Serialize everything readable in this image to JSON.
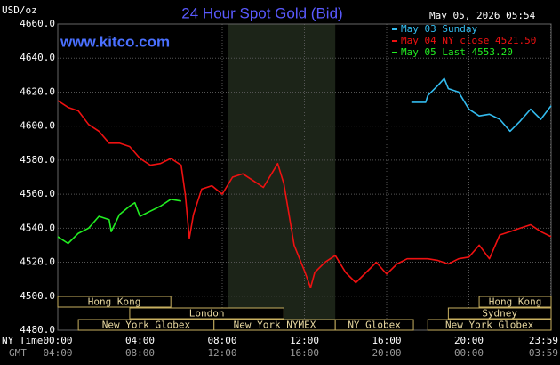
{
  "chart_data": {
    "type": "line",
    "title": "24 Hour Spot Gold (Bid)",
    "y_unit": "USD/oz",
    "timestamp": "May 05, 2026 05:54",
    "source": "www.kitco.com",
    "x_axis_labels": [
      "NY Time",
      "GMT"
    ],
    "xlim": [
      0,
      24
    ],
    "ylim": [
      4480,
      4660
    ],
    "grid": true,
    "xticks": [
      {
        "value": 0,
        "label": "00:00"
      },
      {
        "value": 4,
        "label": "04:00"
      },
      {
        "value": 8,
        "label": "08:00"
      },
      {
        "value": 12,
        "label": "12:00"
      },
      {
        "value": 16,
        "label": "16:00"
      },
      {
        "value": 20,
        "label": "20:00"
      },
      {
        "value": 23.98,
        "label": "23:59"
      }
    ],
    "gmt_tick_labels": [
      "04:00",
      "08:00",
      "12:00",
      "16:00",
      "20:00",
      "00:00",
      "03:59"
    ],
    "yticks": [
      {
        "value": 4480,
        "label": "4480.0"
      },
      {
        "value": 4500,
        "label": "4500.0"
      },
      {
        "value": 4520,
        "label": "4520.0"
      },
      {
        "value": 4540,
        "label": "4540.0"
      },
      {
        "value": 4560,
        "label": "4560.0"
      },
      {
        "value": 4580,
        "label": "4580.0"
      },
      {
        "value": 4600,
        "label": "4600.0"
      },
      {
        "value": 4620,
        "label": "4620.0"
      },
      {
        "value": 4640,
        "label": "4640.0"
      },
      {
        "value": 4660,
        "label": "4660.0"
      }
    ],
    "highlight": {
      "start": 8.3,
      "end": 13.5,
      "color": "#1c2418"
    },
    "series": [
      {
        "name": "May 03 Sunday",
        "color": "#33bbee",
        "x": [
          17.2,
          17.9,
          18,
          18.5,
          18.8,
          19,
          19.5,
          20,
          20.5,
          21,
          21.5,
          22,
          22.5,
          23,
          23.5,
          24
        ],
        "values": [
          4614,
          4614,
          4618,
          4624,
          4628,
          4622,
          4620,
          4610,
          4606,
          4607,
          4604,
          4597,
          4603,
          4610,
          4604,
          4612
        ]
      },
      {
        "name": "May 04 NY close 4521.50",
        "color": "#ee1111",
        "x": [
          0,
          0.5,
          1,
          1.5,
          2,
          2.5,
          3,
          3.5,
          4,
          4.5,
          5,
          5.5,
          6,
          6.2,
          6.4,
          6.6,
          7,
          7.5,
          8,
          8.5,
          9,
          9.5,
          10,
          10.5,
          10.7,
          11,
          11.5,
          12,
          12.3,
          12.5,
          13,
          13.5,
          14,
          14.5,
          15,
          15.5,
          16,
          16.5,
          17,
          17.5,
          18,
          18.5,
          19,
          19.5,
          20,
          20.5,
          21,
          21.5,
          22,
          22.5,
          23,
          23.5,
          24
        ],
        "values": [
          4615,
          4611,
          4609,
          4601,
          4597,
          4590,
          4590,
          4588,
          4581,
          4577,
          4578,
          4581,
          4577,
          4560,
          4534,
          4548,
          4563,
          4565,
          4560,
          4570,
          4572,
          4568,
          4564,
          4574,
          4578,
          4566,
          4530,
          4515,
          4505,
          4514,
          4520,
          4524,
          4514,
          4508,
          4514,
          4520,
          4513,
          4519,
          4522,
          4522,
          4522,
          4521,
          4519,
          4522,
          4523,
          4530,
          4522,
          4536,
          4538,
          4540,
          4542,
          4538,
          4535
        ]
      },
      {
        "name": "May 05 Last 4553.20",
        "color": "#22ee22",
        "x": [
          0,
          0.5,
          1,
          1.5,
          2,
          2.5,
          2.6,
          3,
          3.5,
          3.75,
          4,
          4.5,
          5,
          5.5,
          6
        ],
        "values": [
          4535,
          4531,
          4537,
          4540,
          4547,
          4545,
          4538,
          4548,
          4553,
          4555,
          4547,
          4550,
          4553,
          4557,
          4556
        ]
      }
    ],
    "session_rows": [
      [
        {
          "label": "Hong Kong",
          "start": 0,
          "end": 5.5
        },
        {
          "label": "Hong Kong",
          "start": 20.5,
          "end": 24
        }
      ],
      [
        {
          "label": "London",
          "start": 3.5,
          "end": 11
        },
        {
          "label": "Sydney",
          "start": 19,
          "end": 24
        }
      ],
      [
        {
          "label": "New York Globex",
          "start": 1,
          "end": 7.6
        },
        {
          "label": "New York NYMEX",
          "start": 7.6,
          "end": 13.5
        },
        {
          "label": "NY Globex",
          "start": 13.5,
          "end": 17.3
        },
        {
          "label": "New York Globex",
          "start": 18,
          "end": 24
        }
      ]
    ]
  }
}
